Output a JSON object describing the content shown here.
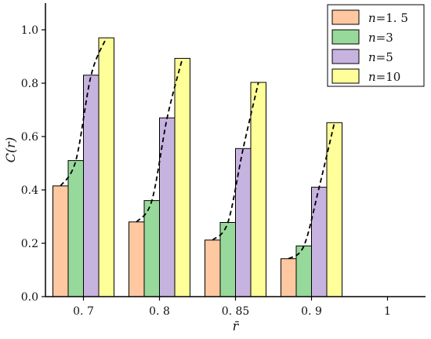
{
  "chart_data": {
    "type": "bar",
    "categories": [
      "0. 7",
      "0. 8",
      "0. 85",
      "0. 9",
      "1"
    ],
    "series": [
      {
        "name": "n=1. 5",
        "color": "#FFC8A0",
        "values": [
          0.415,
          0.28,
          0.212,
          0.142,
          null
        ]
      },
      {
        "name": "n=3",
        "color": "#97D99A",
        "values": [
          0.51,
          0.36,
          0.278,
          0.19,
          null
        ]
      },
      {
        "name": "n=5",
        "color": "#C7B3E0",
        "values": [
          0.83,
          0.67,
          0.555,
          0.41,
          null
        ]
      },
      {
        "name": "n=10",
        "color": "#FFFF99",
        "values": [
          0.97,
          0.893,
          0.803,
          0.652,
          null
        ]
      }
    ],
    "xlabel": "r̄",
    "ylabel": "C(r)",
    "ylim": [
      0,
      1.1
    ],
    "yticks": [
      "0.0",
      "0.2",
      "0.4",
      "0.6",
      "0.8",
      "1.0"
    ],
    "grid": false,
    "legend_position": "top-right",
    "trend_line": {
      "style": "dashed",
      "color": "#000000",
      "description": "dashed curve through bar tops for each group"
    }
  }
}
